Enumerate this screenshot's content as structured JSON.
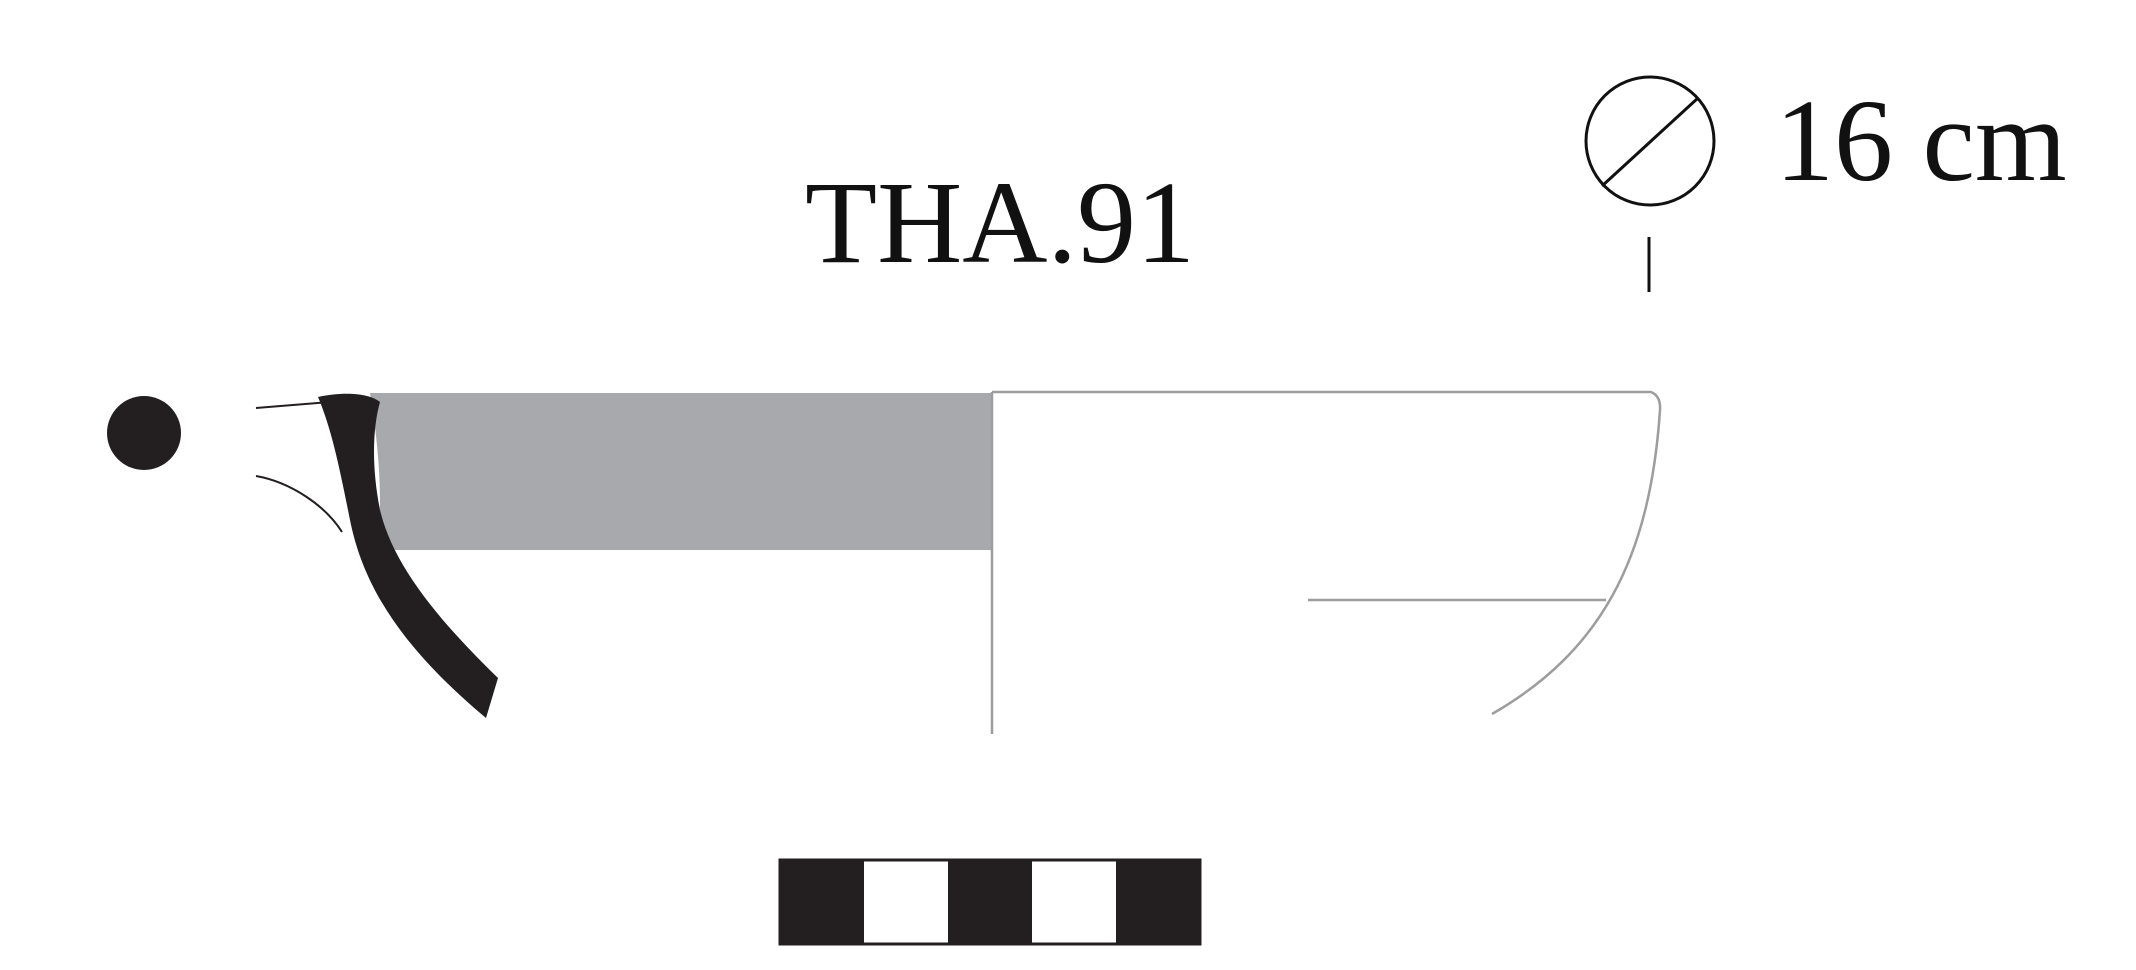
{
  "sherd": {
    "catalogue_id": "THA.91"
  },
  "rim_diameter": {
    "symbol": "diameter-icon",
    "value": "16 cm"
  },
  "colors": {
    "profile": "#231f20",
    "painted_band": "#a7a9ac",
    "outline": "#9d9d9d",
    "text": "#111111",
    "background": "#ffffff"
  },
  "scale_bar": {
    "segments": [
      "black",
      "white",
      "black",
      "white",
      "black"
    ]
  }
}
